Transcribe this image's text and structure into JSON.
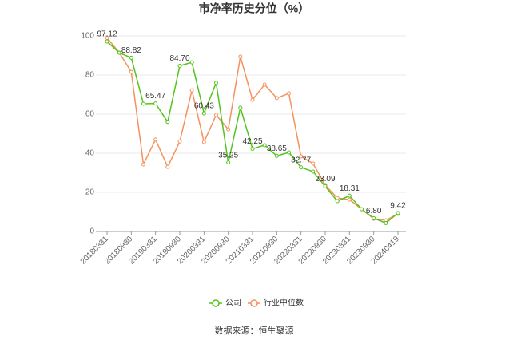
{
  "chart_data": {
    "type": "line",
    "title": "市净率历史分位（%）",
    "source": "数据来源：恒生聚源",
    "categories": [
      "20180331",
      null,
      "20180930",
      null,
      "20190331",
      null,
      "20190930",
      null,
      "20200331",
      null,
      "20200930",
      null,
      "20210331",
      null,
      "20210930",
      null,
      "20220331",
      null,
      "20220930",
      null,
      "20230331",
      null,
      "20230930",
      null,
      "20240419"
    ],
    "series": [
      {
        "name": "公司",
        "color": "#52c41a",
        "values": [
          97.12,
          91.4,
          88.82,
          65.3,
          65.47,
          56,
          84.7,
          86.5,
          60.43,
          76,
          35.25,
          63.3,
          42.25,
          44.1,
          38.65,
          40.4,
          32.77,
          30.6,
          23.09,
          15.5,
          18.31,
          11.4,
          6.8,
          4.3,
          9.42
        ],
        "value_labels": [
          "97.12",
          null,
          "88.82",
          null,
          "65.47",
          null,
          "84.70",
          null,
          "60.43",
          null,
          "35.25",
          null,
          "42.25",
          null,
          "38.65",
          null,
          "32.77",
          null,
          "23.09",
          null,
          "18.31",
          null,
          "6.80",
          null,
          "9.42"
        ]
      },
      {
        "name": "行业中位数",
        "color": "#f4915e",
        "values": [
          99,
          91.5,
          81.6,
          34.3,
          47,
          33,
          46,
          72.2,
          45.7,
          59.6,
          52.2,
          89.4,
          67.3,
          75.1,
          68.2,
          70.6,
          38.4,
          34.7,
          23.7,
          17.1,
          16.3,
          11.4,
          6.5,
          5.7,
          9
        ]
      }
    ],
    "ylim": [
      0,
      100
    ],
    "yticks": [
      0,
      20,
      40,
      60,
      80,
      100
    ],
    "grid": true
  }
}
